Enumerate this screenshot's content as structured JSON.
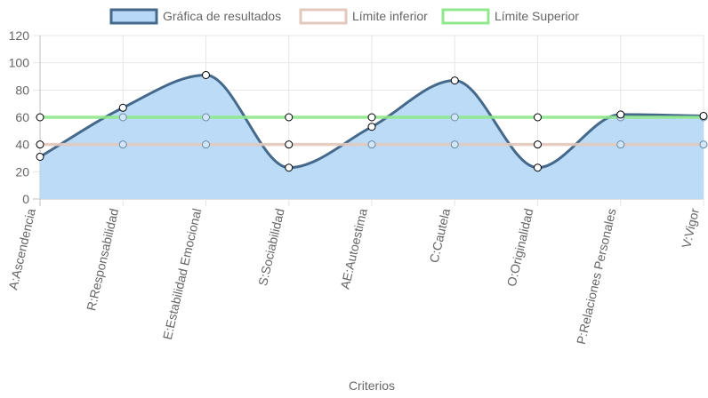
{
  "chart_data": {
    "type": "line",
    "categories": [
      "A:Ascendencia",
      "R:Responsabilidad",
      "E:Estabilidad Emocional",
      "S:Sociabilidad",
      "AE:Autoestima",
      "C:Cautela",
      "O:Originalidad",
      "P:Relaciones Personales",
      "V:Vigor"
    ],
    "series": [
      {
        "name": "Gráfica de resultados",
        "values": [
          31,
          67,
          91,
          23,
          53,
          87,
          23,
          62,
          61
        ],
        "color": "#44698a",
        "fill": "#b7d9f7",
        "filled": true
      },
      {
        "name": "Límite inferior",
        "values": [
          40,
          40,
          40,
          40,
          40,
          40,
          40,
          40,
          40
        ],
        "color": "#e3c9bd",
        "filled": false
      },
      {
        "name": "Límite Superior",
        "values": [
          60,
          60,
          60,
          60,
          60,
          60,
          60,
          60,
          60
        ],
        "color": "#90e88c",
        "filled": false
      }
    ],
    "xlabel": "Criterios",
    "ylabel": "",
    "ylim": [
      0,
      120
    ],
    "yticks": [
      "0",
      "20",
      "40",
      "60",
      "80",
      "100",
      "120"
    ],
    "grid": true,
    "legend_position": "top"
  }
}
